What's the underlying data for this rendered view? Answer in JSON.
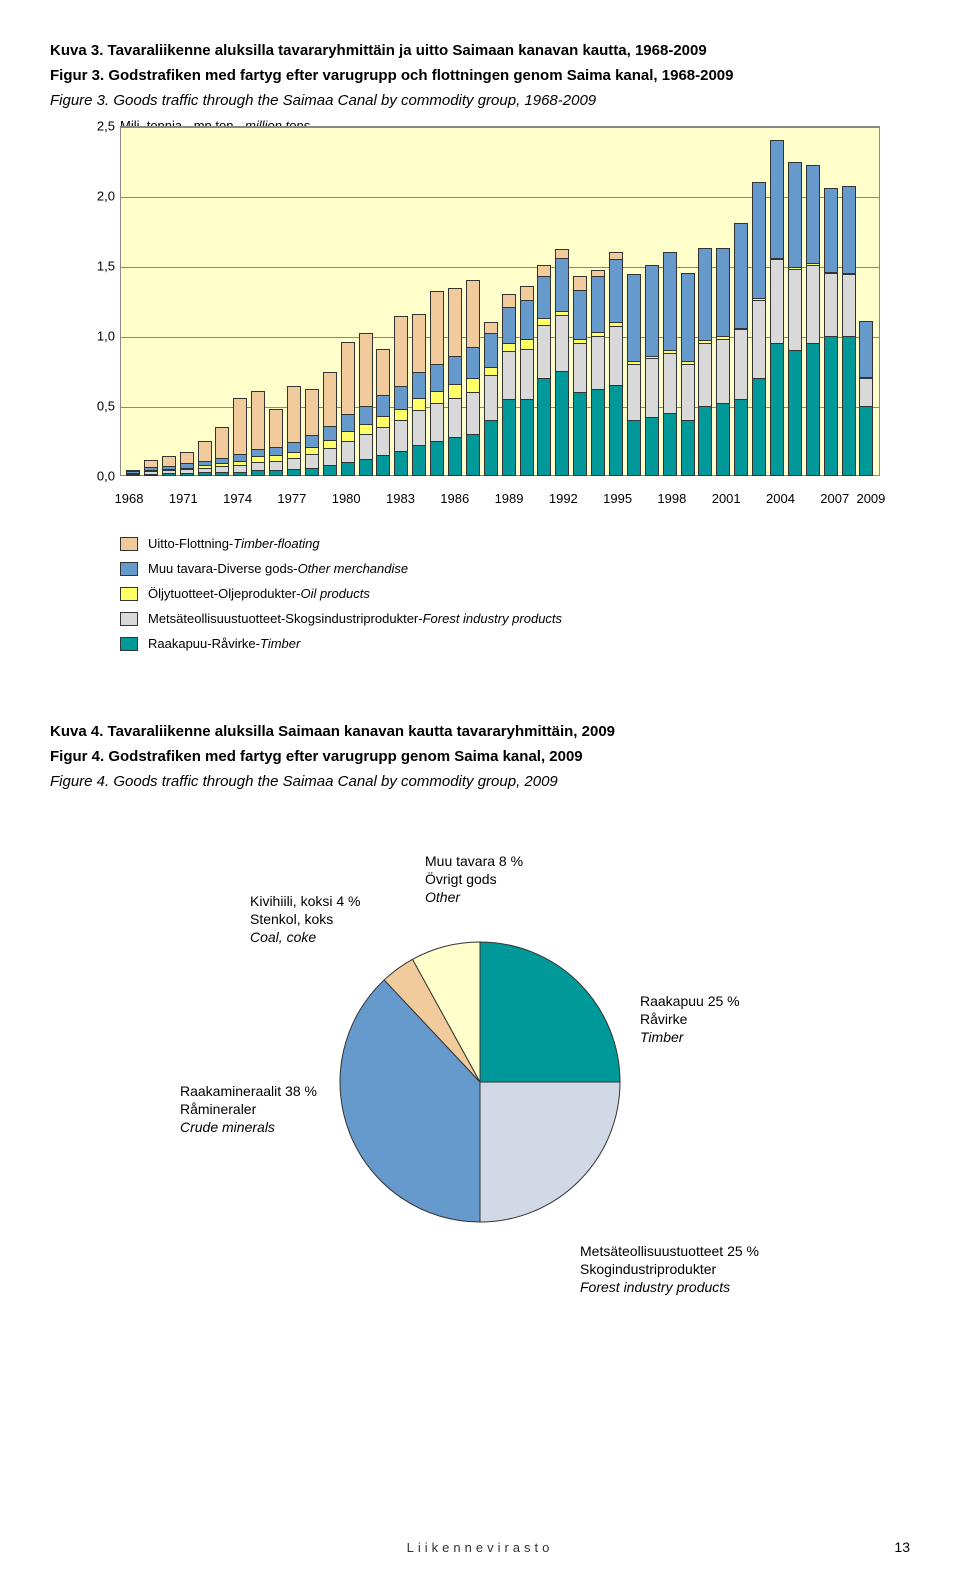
{
  "title3_fi": "Kuva 3. Tavaraliikenne aluksilla tavararyhmittäin ja uitto Saimaan kanavan kautta, 1968-2009",
  "title3_sv": "Figur 3. Godstrafiken med fartyg efter varugrupp och flottningen genom Saima kanal, 1968-2009",
  "title3_en": "Figure 3. Goods traffic through the Saimaa Canal by commodity group, 1968-2009",
  "y_axis_label": "Milj. tonnia - mn ton - ",
  "y_axis_label_italic": "million tons",
  "chart3": {
    "type": "bar-stacked",
    "ylim": [
      0,
      2.5
    ],
    "ytick_step": 0.5,
    "yticks": [
      "0,0",
      "0,5",
      "1,0",
      "1,5",
      "2,0",
      "2,5"
    ],
    "xticks": [
      "1968",
      "1971",
      "1974",
      "1977",
      "1980",
      "1983",
      "1986",
      "1989",
      "1992",
      "1995",
      "1998",
      "2001",
      "2004",
      "2007",
      "2009"
    ],
    "background_color": "#ffffcc",
    "grid_color": "#888888",
    "colors": {
      "timber": "#009999",
      "forest": "#d9d9d9",
      "oil": "#ffff66",
      "other": "#6699cc",
      "float": "#f2cb9c"
    },
    "years_count": 42,
    "series": [
      {
        "timber": 0.01,
        "forest": 0.01,
        "oil": 0.0,
        "other": 0.01,
        "float": 0.01
      },
      {
        "timber": 0.01,
        "forest": 0.02,
        "oil": 0.01,
        "other": 0.02,
        "float": 0.05
      },
      {
        "timber": 0.02,
        "forest": 0.02,
        "oil": 0.01,
        "other": 0.02,
        "float": 0.07
      },
      {
        "timber": 0.02,
        "forest": 0.03,
        "oil": 0.01,
        "other": 0.03,
        "float": 0.08
      },
      {
        "timber": 0.03,
        "forest": 0.03,
        "oil": 0.02,
        "other": 0.03,
        "float": 0.14
      },
      {
        "timber": 0.03,
        "forest": 0.04,
        "oil": 0.02,
        "other": 0.04,
        "float": 0.22
      },
      {
        "timber": 0.03,
        "forest": 0.05,
        "oil": 0.03,
        "other": 0.05,
        "float": 0.4
      },
      {
        "timber": 0.04,
        "forest": 0.06,
        "oil": 0.04,
        "other": 0.05,
        "float": 0.42
      },
      {
        "timber": 0.04,
        "forest": 0.07,
        "oil": 0.04,
        "other": 0.06,
        "float": 0.27
      },
      {
        "timber": 0.05,
        "forest": 0.08,
        "oil": 0.04,
        "other": 0.07,
        "float": 0.4
      },
      {
        "timber": 0.06,
        "forest": 0.1,
        "oil": 0.05,
        "other": 0.08,
        "float": 0.33
      },
      {
        "timber": 0.08,
        "forest": 0.12,
        "oil": 0.06,
        "other": 0.1,
        "float": 0.38
      },
      {
        "timber": 0.1,
        "forest": 0.15,
        "oil": 0.07,
        "other": 0.12,
        "float": 0.52
      },
      {
        "timber": 0.12,
        "forest": 0.18,
        "oil": 0.07,
        "other": 0.13,
        "float": 0.52
      },
      {
        "timber": 0.15,
        "forest": 0.2,
        "oil": 0.08,
        "other": 0.15,
        "float": 0.33
      },
      {
        "timber": 0.18,
        "forest": 0.22,
        "oil": 0.08,
        "other": 0.16,
        "float": 0.5
      },
      {
        "timber": 0.22,
        "forest": 0.25,
        "oil": 0.09,
        "other": 0.18,
        "float": 0.42
      },
      {
        "timber": 0.25,
        "forest": 0.27,
        "oil": 0.09,
        "other": 0.19,
        "float": 0.52
      },
      {
        "timber": 0.28,
        "forest": 0.28,
        "oil": 0.1,
        "other": 0.2,
        "float": 0.48
      },
      {
        "timber": 0.3,
        "forest": 0.3,
        "oil": 0.1,
        "other": 0.22,
        "float": 0.48
      },
      {
        "timber": 0.4,
        "forest": 0.32,
        "oil": 0.06,
        "other": 0.24,
        "float": 0.08
      },
      {
        "timber": 0.55,
        "forest": 0.34,
        "oil": 0.06,
        "other": 0.26,
        "float": 0.09
      },
      {
        "timber": 0.55,
        "forest": 0.36,
        "oil": 0.07,
        "other": 0.28,
        "float": 0.1
      },
      {
        "timber": 0.7,
        "forest": 0.38,
        "oil": 0.05,
        "other": 0.3,
        "float": 0.08
      },
      {
        "timber": 0.75,
        "forest": 0.4,
        "oil": 0.03,
        "other": 0.38,
        "float": 0.06
      },
      {
        "timber": 0.6,
        "forest": 0.35,
        "oil": 0.03,
        "other": 0.35,
        "float": 0.1
      },
      {
        "timber": 0.62,
        "forest": 0.38,
        "oil": 0.03,
        "other": 0.4,
        "float": 0.04
      },
      {
        "timber": 0.65,
        "forest": 0.42,
        "oil": 0.03,
        "other": 0.45,
        "float": 0.05
      },
      {
        "timber": 0.4,
        "forest": 0.4,
        "oil": 0.02,
        "other": 0.62,
        "float": 0.0
      },
      {
        "timber": 0.42,
        "forest": 0.42,
        "oil": 0.02,
        "other": 0.65,
        "float": 0.0
      },
      {
        "timber": 0.45,
        "forest": 0.43,
        "oil": 0.02,
        "other": 0.7,
        "float": 0.0
      },
      {
        "timber": 0.4,
        "forest": 0.4,
        "oil": 0.02,
        "other": 0.63,
        "float": 0.0
      },
      {
        "timber": 0.5,
        "forest": 0.45,
        "oil": 0.02,
        "other": 0.66,
        "float": 0.0
      },
      {
        "timber": 0.52,
        "forest": 0.46,
        "oil": 0.02,
        "other": 0.63,
        "float": 0.0
      },
      {
        "timber": 0.55,
        "forest": 0.5,
        "oil": 0.01,
        "other": 0.75,
        "float": 0.0
      },
      {
        "timber": 0.7,
        "forest": 0.56,
        "oil": 0.01,
        "other": 0.83,
        "float": 0.0
      },
      {
        "timber": 0.95,
        "forest": 0.6,
        "oil": 0.01,
        "other": 0.84,
        "float": 0.0
      },
      {
        "timber": 0.9,
        "forest": 0.58,
        "oil": 0.01,
        "other": 0.75,
        "float": 0.0
      },
      {
        "timber": 0.95,
        "forest": 0.56,
        "oil": 0.01,
        "other": 0.7,
        "float": 0.0
      },
      {
        "timber": 1.0,
        "forest": 0.45,
        "oil": 0.01,
        "other": 0.6,
        "float": 0.0
      },
      {
        "timber": 1.0,
        "forest": 0.44,
        "oil": 0.01,
        "other": 0.62,
        "float": 0.0
      },
      {
        "timber": 0.5,
        "forest": 0.2,
        "oil": 0.01,
        "other": 0.4,
        "float": 0.0
      }
    ]
  },
  "legend": [
    {
      "key": "float",
      "label": "Uitto-Flottning-",
      "italic": "Timber-floating"
    },
    {
      "key": "other",
      "label": "Muu tavara-Diverse gods-",
      "italic": "Other merchandise"
    },
    {
      "key": "oil",
      "label": "Öljytuotteet-Oljeprodukter-",
      "italic": "Oil products"
    },
    {
      "key": "forest",
      "label": "Metsäteollisuustuotteet-Skogsindustriprodukter-",
      "italic": "Forest industry products"
    },
    {
      "key": "timber",
      "label": "Raakapuu-Råvirke-",
      "italic": "Timber"
    }
  ],
  "title4_fi": "Kuva 4. Tavaraliikenne aluksilla Saimaan kanavan kautta tavararyhmittäin, 2009",
  "title4_sv": "Figur 4. Godstrafiken med fartyg efter varugrupp genom Saima kanal, 2009",
  "title4_en": "Figure 4. Goods traffic through the Saimaa Canal by commodity group, 2009",
  "pie": {
    "type": "pie",
    "slices": [
      {
        "label": "Raakapuu 25 %",
        "sub1": "Råvirke",
        "sub2": "Timber",
        "value": 25,
        "color": "#009999"
      },
      {
        "label": "Metsäteollisuustuotteet 25 %",
        "sub1": "Skogindustriprodukter",
        "sub2": "Forest industry products",
        "value": 25,
        "color": "#d1d9e6"
      },
      {
        "label": "Raakamineraalit 38 %",
        "sub1": "Råmineraler",
        "sub2": "Crude minerals",
        "value": 38,
        "color": "#6699cc"
      },
      {
        "label": "Kivihiili, koksi 4 %",
        "sub1": "Stenkol, koks",
        "sub2": "Coal, coke",
        "value": 4,
        "color": "#f2cb9c"
      },
      {
        "label": "Muu tavara 8 %",
        "sub1": "Övrigt gods",
        "sub2": "Other",
        "value": 8,
        "color": "#ffffcc"
      }
    ]
  },
  "footer": "Liikennevirasto",
  "page": "13"
}
